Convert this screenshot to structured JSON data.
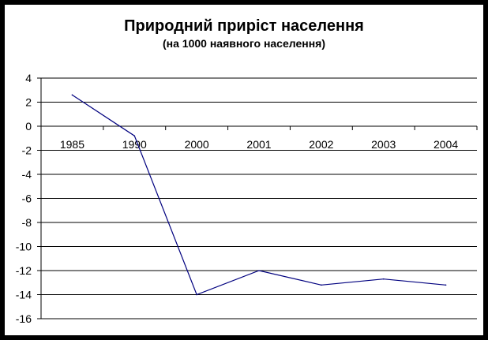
{
  "chart_data": {
    "type": "line",
    "title": "Природний приріст населення",
    "subtitle": "(на 1000 наявного населення)",
    "categories": [
      "1985",
      "1990",
      "2000",
      "2001",
      "2002",
      "2003",
      "2004"
    ],
    "series": [
      {
        "values": [
          2.6,
          -0.8,
          -14.0,
          -12.0,
          -13.2,
          -12.7,
          -13.2
        ]
      }
    ],
    "ylim": [
      -16,
      4
    ],
    "yticks": [
      4,
      2,
      0,
      -2,
      -4,
      -6,
      -8,
      -10,
      -12,
      -14,
      -16
    ],
    "grid": true,
    "colors": {
      "line": "#00007f",
      "grid": "#000000"
    }
  }
}
